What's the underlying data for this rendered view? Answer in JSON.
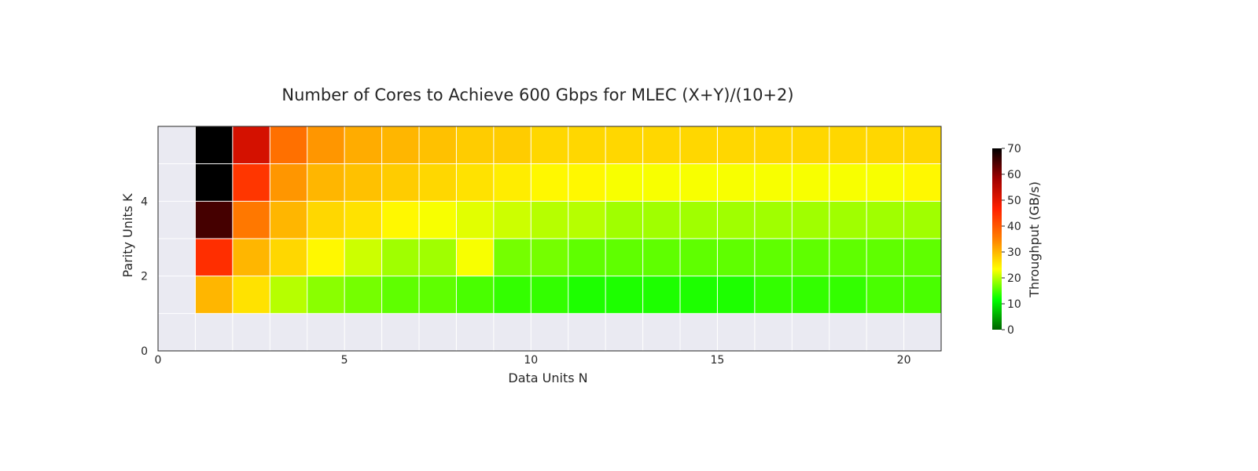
{
  "chart_data": {
    "type": "heatmap",
    "title": "Number of Cores to Achieve 600 Gbps for MLEC (X+Y)/(10+2)",
    "xlabel": "Data Units N",
    "ylabel": "Parity Units K",
    "xlim": [
      0,
      21
    ],
    "ylim": [
      0,
      6
    ],
    "x_ticks": [
      0,
      5,
      10,
      15,
      20
    ],
    "y_ticks": [
      0,
      2,
      4
    ],
    "colorbar": {
      "label": "Throughput (GB/s)",
      "range": [
        0,
        70
      ],
      "ticks": [
        0,
        10,
        20,
        30,
        40,
        50,
        60,
        70
      ],
      "colors": [
        "#006400",
        "#00ff00",
        "#ffff00",
        "#ff8000",
        "#ff2000",
        "#a00000",
        "#000000"
      ]
    },
    "missing_color": "#eaeaf2",
    "x_cells": [
      1,
      2,
      3,
      4,
      5,
      6,
      7,
      8,
      9,
      10,
      11,
      12,
      13,
      14,
      15,
      16,
      17,
      18,
      19,
      20
    ],
    "rows": [
      {
        "k": 1,
        "values": [
          30,
          26,
          20,
          18,
          17,
          16,
          16,
          15,
          14,
          14,
          13,
          13,
          13,
          13,
          13,
          14,
          14,
          14,
          15,
          15
        ]
      },
      {
        "k": 2,
        "values": [
          45,
          30,
          27,
          24,
          21,
          19,
          19,
          23,
          17,
          17,
          16,
          16,
          16,
          16,
          16,
          16,
          16,
          16,
          16,
          16
        ]
      },
      {
        "k": 3,
        "values": [
          65,
          36,
          30,
          27,
          26,
          24,
          23,
          22,
          21,
          20,
          20,
          19,
          19,
          19,
          19,
          19,
          19,
          19,
          19,
          19
        ]
      },
      {
        "k": 4,
        "values": [
          70,
          44,
          33,
          30,
          29,
          28,
          27,
          26,
          25,
          24,
          24,
          23,
          23,
          23,
          23,
          23,
          23,
          23,
          23,
          24
        ]
      },
      {
        "k": 5,
        "values": [
          70,
          52,
          37,
          33,
          31,
          30,
          29,
          28,
          28,
          27,
          27,
          27,
          27,
          27,
          27,
          27,
          27,
          27,
          27,
          27
        ]
      }
    ]
  }
}
